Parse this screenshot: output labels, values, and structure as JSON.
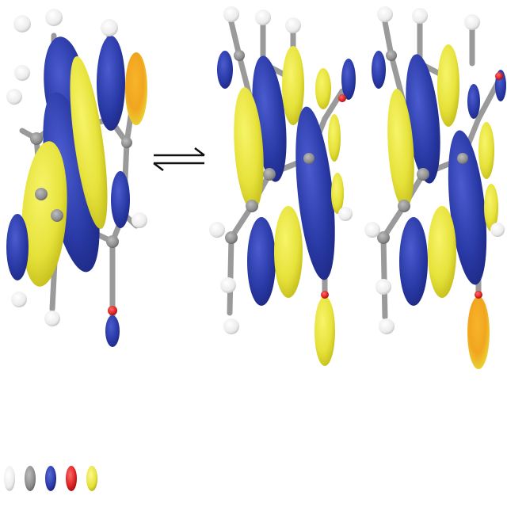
{
  "colors": {
    "lobe_blue": "#2a3aa6",
    "lobe_blue_dark": "#1d2a85",
    "lobe_yellow": "#e6e23a",
    "lobe_yellow_dark": "#c9c21a",
    "lobe_orange": "#f2a51f",
    "atom_white": "#f2f2f2",
    "atom_gray": "#8c8c8c",
    "atom_red": "#d81e1e",
    "bond_gray": "#9a9a9a",
    "arrow": "#111111"
  },
  "figure": {
    "molecules": [
      {
        "name": "tautomer-left"
      },
      {
        "name": "tautomer-middle"
      },
      {
        "name": "tautomer-right"
      }
    ],
    "equilibrium_arrow": {
      "icon": "equilibrium-arrows-icon"
    },
    "color_key": [
      {
        "name": "white-sphere",
        "color": "#f2f2f2"
      },
      {
        "name": "gray-sphere",
        "color": "#8c8c8c"
      },
      {
        "name": "blue-sphere",
        "color": "#2a3aa6"
      },
      {
        "name": "red-sphere",
        "color": "#d81e1e"
      },
      {
        "name": "yellow-sphere",
        "color": "#e6e23a"
      }
    ]
  }
}
